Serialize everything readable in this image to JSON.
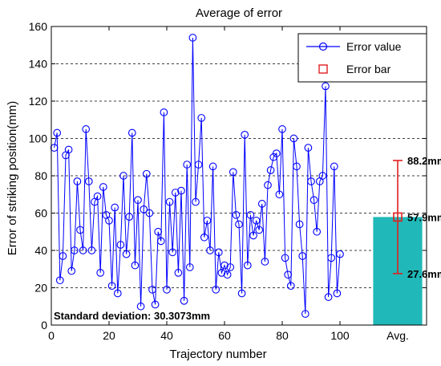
{
  "chart_data": {
    "type": "line",
    "title": "Average of error",
    "xlabel": "Trajectory number",
    "ylabel": "Error of striking position(mm)",
    "xlim": [
      0,
      130
    ],
    "ylim": [
      0,
      160
    ],
    "grid": "horizontal dashed",
    "legend_placement": "top-right",
    "x_ticks": [
      "0",
      "20",
      "40",
      "60",
      "80",
      "100"
    ],
    "y_ticks": [
      "0",
      "20",
      "40",
      "60",
      "80",
      "100",
      "120",
      "140",
      "160"
    ],
    "avg_tick_label": "Avg.",
    "series": [
      {
        "name": "Error value",
        "color": "#0000ff",
        "marker": "circle",
        "x": [
          1,
          2,
          3,
          4,
          5,
          6,
          7,
          8,
          9,
          10,
          11,
          12,
          13,
          14,
          15,
          16,
          17,
          18,
          19,
          20,
          21,
          22,
          23,
          24,
          25,
          26,
          27,
          28,
          29,
          30,
          31,
          32,
          33,
          34,
          35,
          36,
          37,
          38,
          39,
          40,
          41,
          42,
          43,
          44,
          45,
          46,
          47,
          48,
          49,
          50,
          51,
          52,
          53,
          54,
          55,
          56,
          57,
          58,
          59,
          60,
          61,
          62,
          63,
          64,
          65,
          66,
          67,
          68,
          69,
          70,
          71,
          72,
          73,
          74,
          75,
          76,
          77,
          78,
          79,
          80,
          81,
          82,
          83,
          84,
          85,
          86,
          87,
          88,
          89,
          90,
          91,
          92,
          93,
          94,
          95,
          96,
          97,
          98,
          99,
          100
        ],
        "values": [
          95,
          103,
          24,
          37,
          91,
          94,
          29,
          40,
          77,
          51,
          40,
          105,
          77,
          40,
          66,
          69,
          28,
          74,
          59,
          56,
          21,
          63,
          17,
          43,
          80,
          38,
          58,
          103,
          32,
          67,
          10,
          62,
          81,
          60,
          19,
          11,
          50,
          45,
          114,
          19,
          66,
          39,
          71,
          28,
          72,
          13,
          86,
          31,
          154,
          66,
          86,
          111,
          47,
          56,
          40,
          85,
          19,
          39,
          28,
          32,
          27,
          31,
          82,
          59,
          54,
          17,
          102,
          32,
          59,
          48,
          56,
          51,
          65,
          34,
          75,
          83,
          90,
          92,
          70,
          105,
          36,
          27,
          21,
          100,
          85,
          54,
          37,
          6,
          95,
          77,
          67,
          50,
          77,
          80,
          128,
          15,
          36,
          85,
          17,
          38
        ]
      },
      {
        "name": "Error bar",
        "color": "#e02020",
        "marker": "square"
      }
    ],
    "average_bar": {
      "category": "Avg.",
      "value": 57.9,
      "color": "#20b8b8",
      "error_low": 27.6,
      "error_high": 88.2,
      "labels": [
        "88.2mm",
        "57.9mm",
        "27.6mm"
      ]
    },
    "annotation": "Standard deviation: 30.3073mm"
  }
}
